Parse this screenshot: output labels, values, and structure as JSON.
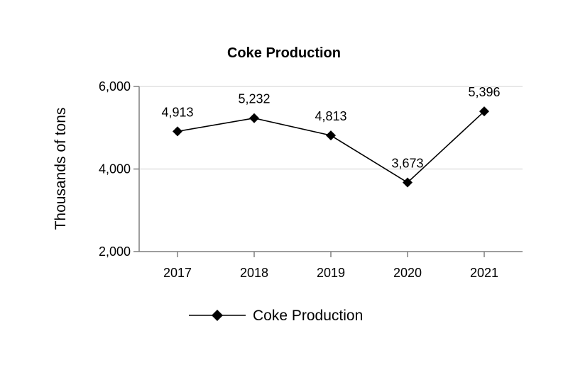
{
  "chart_data": {
    "type": "line",
    "title": "Coke Production",
    "xlabel": "",
    "ylabel": "Thousands of tons",
    "ylim": [
      2000,
      6000
    ],
    "yticks": [
      2000,
      4000,
      6000
    ],
    "ytick_labels": [
      "2,000",
      "4,000",
      "6,000"
    ],
    "categories": [
      "2017",
      "2018",
      "2019",
      "2020",
      "2021"
    ],
    "series": [
      {
        "name": "Coke Production",
        "values": [
          4913,
          5232,
          4813,
          3673,
          5396
        ],
        "labels": [
          "4,913",
          "5,232",
          "4,813",
          "3,673",
          "5,396"
        ],
        "color": "#000000",
        "marker": "diamond"
      }
    ],
    "grid": true,
    "legend": "bottom-center"
  }
}
